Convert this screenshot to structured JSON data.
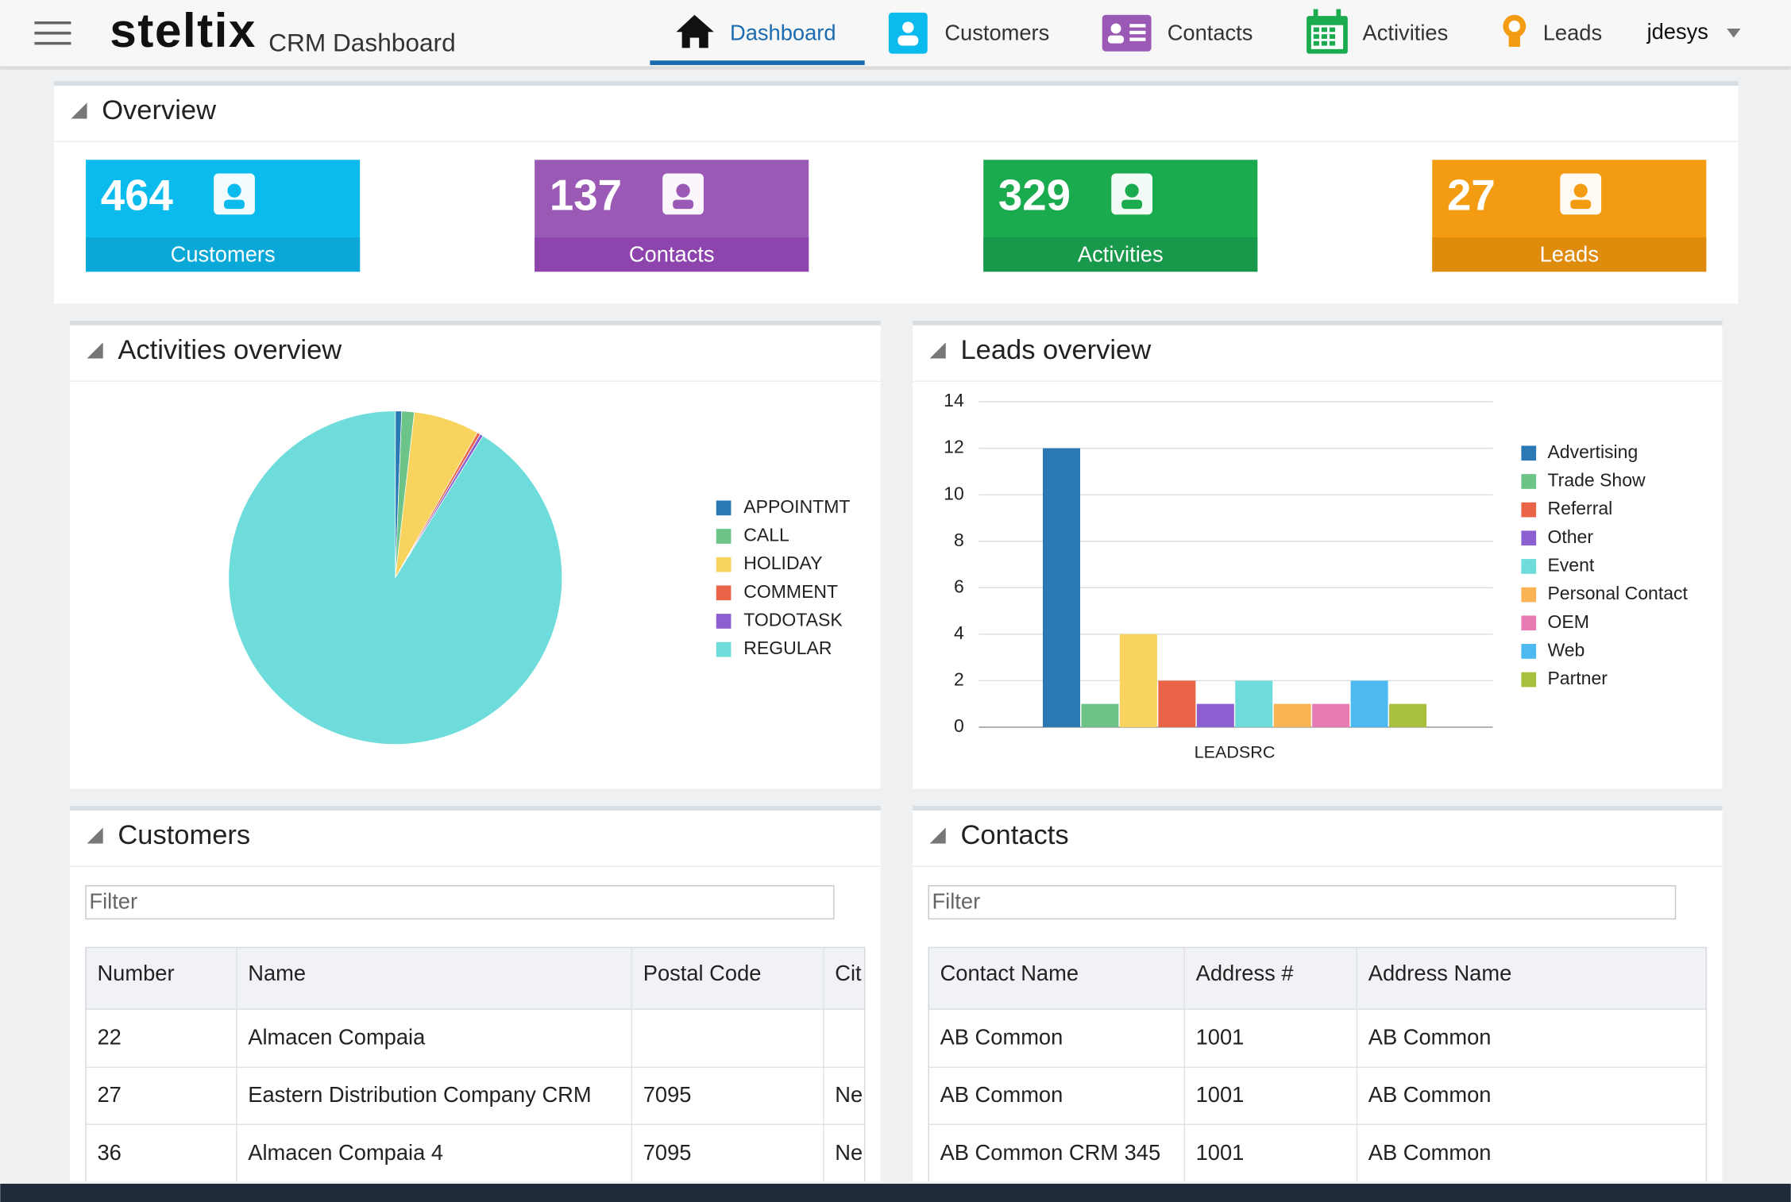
{
  "header": {
    "logo": "steltix",
    "title": "CRM Dashboard"
  },
  "nav": {
    "items": [
      "Dashboard",
      "Customers",
      "Contacts",
      "Activities",
      "Leads"
    ],
    "user": "jdesys"
  },
  "overview": {
    "title": "Overview",
    "tiles": [
      {
        "value": 464,
        "label": "Customers"
      },
      {
        "value": 137,
        "label": "Contacts"
      },
      {
        "value": 329,
        "label": "Activities"
      },
      {
        "value": 27,
        "label": "Leads"
      }
    ]
  },
  "chart_data": [
    {
      "type": "pie",
      "title": "Activities overview",
      "categories": [
        "APPOINTMT",
        "CALL",
        "HOLIDAY",
        "COMMENT",
        "TODOTASK",
        "REGULAR"
      ],
      "values": [
        2,
        4,
        21,
        1,
        1,
        300
      ],
      "colors": [
        "#2a79b5",
        "#6cc488",
        "#f8d35e",
        "#ea6548",
        "#8c5fd0",
        "#6ddcdb"
      ]
    },
    {
      "type": "bar",
      "title": "Leads overview",
      "categories": [
        "LEADSRC"
      ],
      "series": [
        {
          "name": "Advertising",
          "color": "#2a79b5",
          "values": [
            12
          ]
        },
        {
          "name": "Trade Show",
          "color": "#6cc488",
          "values": [
            1
          ]
        },
        {
          "name": null,
          "color": "#f8d35e",
          "values": [
            4
          ]
        },
        {
          "name": "Referral",
          "color": "#ea6548",
          "values": [
            2
          ]
        },
        {
          "name": "Other",
          "color": "#8c5fd0",
          "values": [
            1
          ]
        },
        {
          "name": "Event",
          "color": "#6ddcdb",
          "values": [
            2
          ]
        },
        {
          "name": "Personal Contact",
          "color": "#fbb454",
          "values": [
            1
          ]
        },
        {
          "name": "OEM",
          "color": "#e97bb4",
          "values": [
            1
          ]
        },
        {
          "name": "Web",
          "color": "#4cbaf0",
          "values": [
            2
          ]
        },
        {
          "name": "Partner",
          "color": "#a7c13f",
          "values": [
            1
          ]
        }
      ],
      "ylim": [
        0,
        14
      ],
      "yticks": [
        0,
        2,
        4,
        6,
        8,
        10,
        12,
        14
      ],
      "grid": true
    }
  ],
  "customers": {
    "title": "Customers",
    "filter": "Filter",
    "columns": [
      "Number",
      "Name",
      "Postal Code",
      "Cit"
    ],
    "rows": [
      [
        "22",
        "Almacen Compaia",
        null,
        null
      ],
      [
        "27",
        "Eastern Distribution Company CRM",
        "7095",
        "Ne"
      ],
      [
        "36",
        "Almacen Compaia 4",
        "7095",
        "Ne"
      ]
    ]
  },
  "contacts": {
    "title": "Contacts",
    "filter": "Filter",
    "columns": [
      "Contact Name",
      "Address #",
      "Address Name"
    ],
    "rows": [
      [
        "AB Common",
        "1001",
        "AB Common"
      ],
      [
        "AB Common",
        "1001",
        "AB Common"
      ],
      [
        "AB Common CRM 345",
        "1001",
        "AB Common"
      ]
    ]
  }
}
